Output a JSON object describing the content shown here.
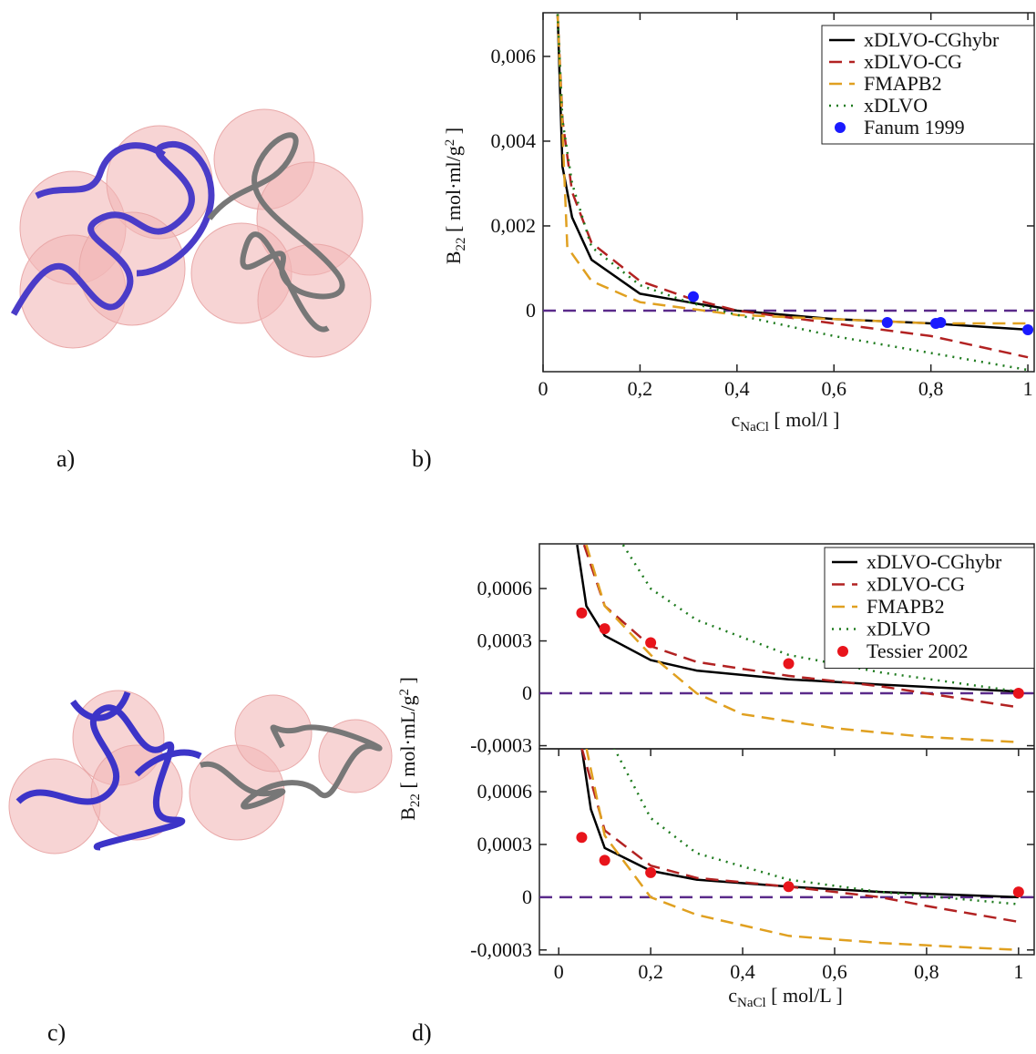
{
  "panels": [
    "a)",
    "b)",
    "c)",
    "d)"
  ],
  "chart_data": [
    {
      "type": "line",
      "xlabel": [
        {
          "text": "c"
        },
        {
          "text": "NaCl",
          "script": "sub"
        },
        {
          "text": " [ mol/l ]"
        }
      ],
      "ylabel": [
        {
          "text": "B"
        },
        {
          "text": "22",
          "script": "sub"
        },
        {
          "text": " [ mol·ml/g"
        },
        {
          "text": "2",
          "script": "sup"
        },
        {
          "text": " ]"
        }
      ],
      "xlim": [
        0,
        1.013
      ],
      "ylim": [
        -0.00144,
        0.00703
      ],
      "xticks": [
        0,
        {
          "value": 0.2,
          "label": "0,2"
        },
        {
          "value": 0.4,
          "label": "0,4"
        },
        {
          "value": 0.6,
          "label": "0,6"
        },
        {
          "value": 0.8,
          "label": "0,8"
        },
        1
      ],
      "yticks": [
        0,
        {
          "value": 0.002,
          "label": "0,002"
        },
        {
          "value": 0.004,
          "label": "0,004"
        },
        {
          "value": 0.006,
          "label": "0,006"
        }
      ],
      "reference_line": {
        "value": 0,
        "color": "#5a2a8a",
        "style": "dashed"
      },
      "legend": "upper right",
      "series": [
        {
          "name": "xDLVO-CGhybr",
          "kind": "line",
          "style": "solid",
          "color": "#000000",
          "x": [
            0.03,
            0.04,
            0.06,
            0.1,
            0.2,
            0.3,
            0.4,
            0.6,
            0.8,
            1.0
          ],
          "values": [
            0.007,
            0.0034,
            0.0022,
            0.0012,
            0.0004,
            0.0002,
            0.0,
            -0.0002,
            -0.0003,
            -0.00045
          ]
        },
        {
          "name": "xDLVO-CG",
          "kind": "line",
          "style": "dashed",
          "color": "#b22222",
          "x": [
            0.03,
            0.04,
            0.06,
            0.1,
            0.2,
            0.3,
            0.4,
            0.6,
            0.8,
            1.0
          ],
          "values": [
            0.007,
            0.0045,
            0.0028,
            0.0016,
            0.0007,
            0.0003,
            0.0,
            -0.0003,
            -0.0006,
            -0.0011
          ]
        },
        {
          "name": "FMAPB2",
          "kind": "line",
          "style": "dashed",
          "color": "#e0a020",
          "x": [
            0.03,
            0.05,
            0.1,
            0.2,
            0.3,
            0.4,
            0.6,
            0.8,
            1.0
          ],
          "values": [
            0.007,
            0.0015,
            0.0007,
            0.0002,
            5e-05,
            -0.0001,
            -0.0002,
            -0.0003,
            -0.0003
          ]
        },
        {
          "name": "xDLVO",
          "kind": "line",
          "style": "dotted",
          "color": "#1e7b1e",
          "x": [
            0.03,
            0.04,
            0.06,
            0.1,
            0.2,
            0.3,
            0.4,
            0.6,
            0.8,
            1.0
          ],
          "values": [
            0.007,
            0.0045,
            0.003,
            0.0015,
            0.0006,
            0.0002,
            -0.0001,
            -0.0006,
            -0.001,
            -0.0014
          ]
        },
        {
          "name": "Fanum 1999",
          "kind": "points",
          "color": "#1a1aff",
          "x": [
            0.31,
            0.71,
            0.81,
            0.82,
            1.0
          ],
          "values": [
            0.00033,
            -0.00028,
            -0.0003,
            -0.00028,
            -0.00045
          ]
        }
      ]
    },
    {
      "type": "line",
      "ylabel": [
        {
          "text": "B"
        },
        {
          "text": "22",
          "script": "sub"
        },
        {
          "text": " [ mol·mL/g"
        },
        {
          "text": "2",
          "script": "sup"
        },
        {
          "text": " ]"
        }
      ],
      "xlim": [
        -0.042,
        1.034
      ],
      "ylim": [
        -0.000318,
        0.000856
      ],
      "yticks": [
        {
          "value": -0.0003,
          "label": "-0,0003"
        },
        0,
        {
          "value": 0.0003,
          "label": "0,0003"
        },
        {
          "value": 0.0006,
          "label": "0,0006"
        }
      ],
      "reference_line": {
        "value": 0,
        "color": "#5a2a8a",
        "style": "dashed"
      },
      "legend": "upper right",
      "series": [
        {
          "name": "xDLVO-CGhybr",
          "kind": "line",
          "style": "solid",
          "color": "#000000",
          "x": [
            0.04,
            0.06,
            0.1,
            0.2,
            0.3,
            0.5,
            0.7,
            1.0
          ],
          "values": [
            0.00085,
            0.0005,
            0.00033,
            0.00019,
            0.00013,
            8e-05,
            5e-05,
            1e-05
          ]
        },
        {
          "name": "xDLVO-CG",
          "kind": "line",
          "style": "dashed",
          "color": "#b22222",
          "x": [
            0.055,
            0.1,
            0.2,
            0.3,
            0.5,
            0.7,
            0.8,
            1.0
          ],
          "values": [
            0.00085,
            0.0005,
            0.00027,
            0.00018,
            0.0001,
            4e-05,
            0.0,
            -8e-05
          ]
        },
        {
          "name": "FMAPB2",
          "kind": "line",
          "style": "dashed",
          "color": "#e0a020",
          "x": [
            0.06,
            0.1,
            0.2,
            0.3,
            0.4,
            0.6,
            0.8,
            1.0
          ],
          "values": [
            0.00085,
            0.0005,
            0.00022,
            0.0,
            -0.00012,
            -0.0002,
            -0.00025,
            -0.00028
          ]
        },
        {
          "name": "xDLVO",
          "kind": "line",
          "style": "dotted",
          "color": "#1e7b1e",
          "x": [
            0.14,
            0.2,
            0.3,
            0.5,
            0.7,
            1.0
          ],
          "values": [
            0.00085,
            0.0006,
            0.00042,
            0.00022,
            0.00012,
            1e-05
          ]
        },
        {
          "name": "Tessier 2002",
          "kind": "points",
          "color": "#e8141b",
          "x": [
            0.05,
            0.1,
            0.2,
            0.5,
            1.0
          ],
          "values": [
            0.00046,
            0.00037,
            0.00029,
            0.00017,
            0.0
          ]
        }
      ]
    },
    {
      "type": "line",
      "xlabel": [
        {
          "text": "c"
        },
        {
          "text": "NaCl",
          "script": "sub"
        },
        {
          "text": " [ mol/L ]"
        }
      ],
      "xlim": [
        -0.042,
        1.034
      ],
      "ylim": [
        -0.000327,
        0.000844
      ],
      "xticks": [
        0,
        {
          "value": 0.2,
          "label": "0,2"
        },
        {
          "value": 0.4,
          "label": "0,4"
        },
        {
          "value": 0.6,
          "label": "0,6"
        },
        {
          "value": 0.8,
          "label": "0,8"
        },
        1
      ],
      "yticks": [
        {
          "value": -0.0003,
          "label": "-0,0003"
        },
        0,
        {
          "value": 0.0003,
          "label": "0,0003"
        },
        {
          "value": 0.0006,
          "label": "0,0006"
        }
      ],
      "reference_line": {
        "value": 0,
        "color": "#5a2a8a",
        "style": "dashed"
      },
      "series": [
        {
          "kind": "line",
          "style": "solid",
          "color": "#000000",
          "x": [
            0.05,
            0.07,
            0.1,
            0.2,
            0.3,
            0.5,
            0.7,
            1.0
          ],
          "values": [
            0.00085,
            0.0005,
            0.00028,
            0.00015,
            0.0001,
            6e-05,
            3e-05,
            0.0
          ]
        },
        {
          "kind": "line",
          "style": "dashed",
          "color": "#b22222",
          "x": [
            0.05,
            0.1,
            0.2,
            0.3,
            0.5,
            0.7,
            0.8,
            1.0
          ],
          "values": [
            0.00085,
            0.00038,
            0.00018,
            0.00011,
            6e-05,
            0.0,
            -5e-05,
            -0.00014
          ]
        },
        {
          "kind": "line",
          "style": "dashed",
          "color": "#e0a020",
          "x": [
            0.06,
            0.1,
            0.2,
            0.3,
            0.5,
            0.7,
            1.0
          ],
          "values": [
            0.00085,
            0.00035,
            0.0,
            -0.0001,
            -0.00022,
            -0.00026,
            -0.0003
          ]
        },
        {
          "kind": "line",
          "style": "dotted",
          "color": "#1e7b1e",
          "x": [
            0.12,
            0.2,
            0.3,
            0.5,
            0.7,
            1.0
          ],
          "values": [
            0.00085,
            0.00045,
            0.00025,
            0.0001,
            3e-05,
            -4e-05
          ]
        },
        {
          "kind": "points",
          "color": "#e8141b",
          "x": [
            0.05,
            0.1,
            0.2,
            0.5,
            1.0
          ],
          "values": [
            0.00034,
            0.00021,
            0.00014,
            6e-05,
            3e-05
          ]
        }
      ]
    }
  ]
}
